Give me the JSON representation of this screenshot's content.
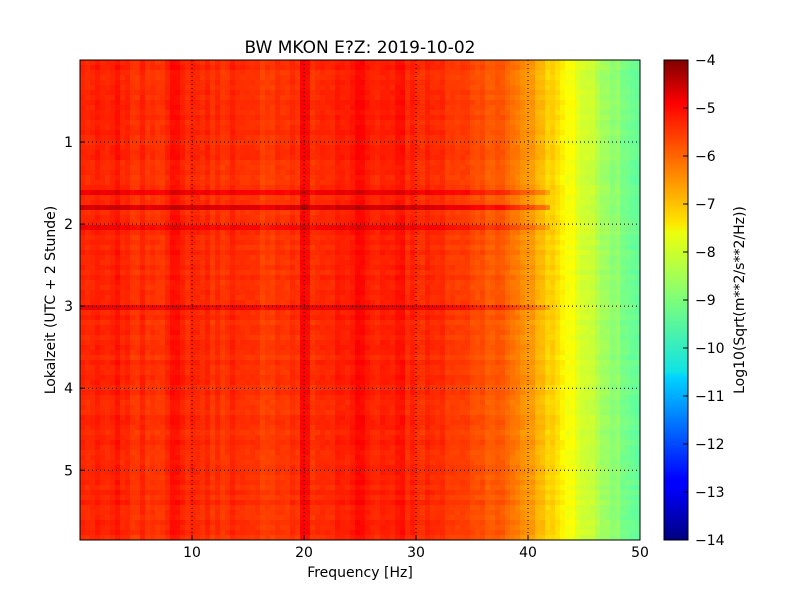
{
  "chart_data": {
    "type": "heatmap",
    "title": "BW MKON E?Z: 2019-10-02",
    "xlabel": "Frequency [Hz]",
    "ylabel": "Lokalzeit (UTC + 2 Stunde)",
    "xlim": [
      0,
      50
    ],
    "ylim": [
      5.85,
      0
    ],
    "xticks": [
      10,
      20,
      30,
      40,
      50
    ],
    "yticks": [
      1,
      2,
      3,
      4,
      5
    ],
    "grid": true,
    "colorbar": {
      "label": "Log10(Sqrt(m**2/s**2/Hz))",
      "vmin": -14,
      "vmax": -4,
      "ticks": [
        -4,
        -5,
        -6,
        -7,
        -8,
        -9,
        -10,
        -11,
        -12,
        -13,
        -14
      ],
      "colormap": "jet"
    },
    "frequency_profile": {
      "frequency_hz": [
        0,
        5,
        10,
        15,
        20,
        25,
        30,
        35,
        38,
        40,
        42,
        44,
        46,
        48,
        50
      ],
      "log_amplitude": [
        -5.6,
        -5.7,
        -5.6,
        -5.8,
        -5.7,
        -5.5,
        -5.6,
        -5.9,
        -6.2,
        -6.7,
        -7.3,
        -7.9,
        -8.4,
        -8.9,
        -9.4
      ]
    },
    "strong_events": [
      {
        "time": 1.8,
        "log_amplitude_delta": 0.8
      },
      {
        "time": 1.6,
        "log_amplitude_delta": 0.45
      },
      {
        "time": 2.05,
        "log_amplitude_delta": 0.35
      },
      {
        "time": 3.03,
        "log_amplitude_delta": 0.4
      }
    ],
    "strong_frequency_lines": [
      {
        "frequency_hz": 20.0,
        "log_amplitude_delta": 0.35
      },
      {
        "frequency_hz": 25.0,
        "log_amplitude_delta": 0.2
      },
      {
        "frequency_hz": 28.5,
        "log_amplitude_delta": 0.2
      },
      {
        "frequency_hz": 3.5,
        "log_amplitude_delta": 0.15
      },
      {
        "frequency_hz": 8.5,
        "log_amplitude_delta": 0.15
      },
      {
        "frequency_hz": 13.5,
        "log_amplitude_delta": 0.12
      }
    ]
  }
}
